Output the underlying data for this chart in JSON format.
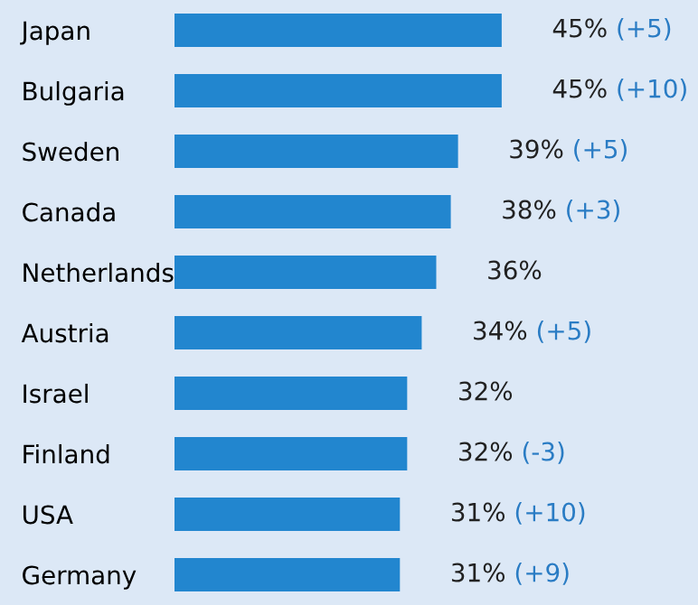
{
  "chart_data": {
    "type": "bar",
    "orientation": "horizontal",
    "categories": [
      "Japan",
      "Bulgaria",
      "Sweden",
      "Canada",
      "Netherlands",
      "Austria",
      "Israel",
      "Finland",
      "USA",
      "Germany"
    ],
    "values": [
      45,
      45,
      39,
      38,
      36,
      34,
      32,
      32,
      31,
      31
    ],
    "color": "#2286cf",
    "value_labels": [
      "45% (+5)",
      "45% (+10)",
      "39% (+5)",
      "38% (+3)",
      "36%",
      "34% (+5)",
      "32%",
      "32% (-3)",
      "31% (+10)",
      "31% (+9)"
    ],
    "grid": false,
    "legend": false
  }
}
